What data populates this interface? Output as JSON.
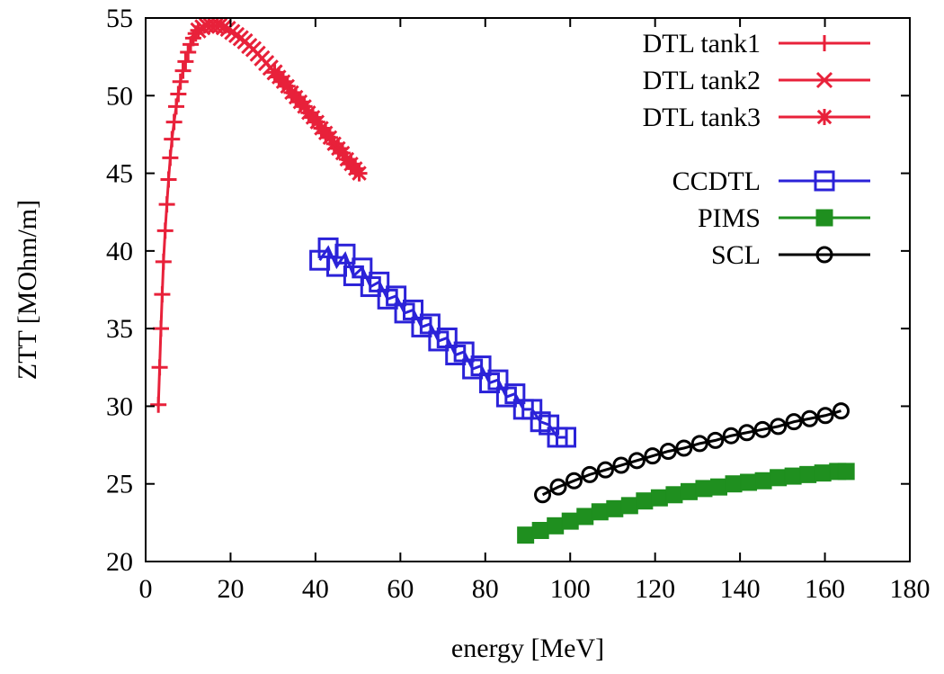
{
  "chart_data": {
    "type": "scatter",
    "title": "",
    "xlabel": "energy [MeV]",
    "ylabel": "ZTT [MOhm/m]",
    "xlim": [
      0,
      180
    ],
    "ylim": [
      20,
      55
    ],
    "xticks": [
      0,
      20,
      40,
      60,
      80,
      100,
      120,
      140,
      160,
      180
    ],
    "yticks": [
      20,
      25,
      30,
      35,
      40,
      45,
      50,
      55
    ],
    "grid": false,
    "legend_position": "top-right",
    "series": [
      {
        "name": "DTL tank1",
        "color": "#e8213a",
        "marker": "plus",
        "x": [
          3.0,
          3.3,
          3.6,
          3.9,
          4.2,
          4.6,
          5.0,
          5.4,
          5.8,
          6.2,
          6.7,
          7.2,
          7.7,
          8.2,
          8.8,
          9.4,
          10.0,
          10.6,
          11.2,
          11.8,
          12.4
        ],
        "y": [
          30.1,
          32.5,
          35.0,
          37.2,
          39.3,
          41.3,
          43.0,
          44.6,
          46.0,
          47.2,
          48.3,
          49.3,
          50.1,
          50.9,
          51.6,
          52.2,
          52.8,
          53.3,
          53.7,
          54.0,
          54.2
        ]
      },
      {
        "name": "DTL tank2",
        "color": "#e8213a",
        "marker": "cross",
        "x": [
          12.4,
          13.4,
          14.4,
          15.4,
          16.4,
          17.4,
          18.4,
          19.4,
          20.4,
          21.4,
          22.4,
          23.4,
          24.4,
          25.4,
          26.4,
          27.4,
          28.4,
          29.4,
          30.4
        ],
        "y": [
          54.2,
          54.4,
          54.5,
          54.5,
          54.5,
          54.5,
          54.4,
          54.3,
          54.1,
          53.9,
          53.7,
          53.5,
          53.2,
          53.0,
          52.7,
          52.4,
          52.1,
          51.8,
          51.5
        ]
      },
      {
        "name": "DTL tank3",
        "color": "#e8213a",
        "marker": "star",
        "x": [
          30.4,
          31.4,
          32.4,
          33.4,
          34.4,
          35.4,
          36.4,
          37.4,
          38.4,
          39.4,
          40.4,
          41.4,
          42.4,
          43.4,
          44.4,
          45.4,
          46.4,
          47.4,
          48.4,
          49.4,
          50.3
        ],
        "y": [
          51.5,
          51.2,
          50.9,
          50.6,
          50.2,
          49.9,
          49.6,
          49.3,
          48.9,
          48.6,
          48.3,
          47.9,
          47.6,
          47.3,
          46.9,
          46.6,
          46.3,
          45.9,
          45.6,
          45.3,
          45.0
        ]
      },
      {
        "name": "CCDTL",
        "color": "#2b22d8",
        "marker": "open-square",
        "x": [
          41,
          43,
          45,
          47,
          49,
          51,
          53,
          55,
          57,
          59,
          61,
          63,
          65,
          67,
          69,
          71,
          73,
          75,
          77,
          79,
          81,
          83,
          85,
          87,
          89,
          91,
          93,
          95,
          97,
          99
        ],
        "y": [
          39.4,
          40.2,
          39.0,
          39.8,
          38.4,
          38.9,
          37.7,
          38.0,
          36.9,
          37.1,
          36.0,
          36.2,
          35.1,
          35.3,
          34.2,
          34.4,
          33.3,
          33.5,
          32.4,
          32.6,
          31.5,
          31.7,
          30.6,
          30.8,
          29.8,
          29.8,
          29.0,
          28.8,
          28.0,
          28.0
        ]
      },
      {
        "name": "PIMS",
        "color": "#1f8f1f",
        "marker": "filled-square",
        "x": [
          89.5,
          93,
          96.5,
          100,
          103.5,
          107,
          110.5,
          114,
          117.5,
          121,
          124.5,
          128,
          131.5,
          135,
          138.5,
          142,
          145.5,
          149,
          152.5,
          156,
          159.5,
          163,
          165
        ],
        "y": [
          21.7,
          22.0,
          22.3,
          22.6,
          22.9,
          23.2,
          23.4,
          23.6,
          23.9,
          24.1,
          24.3,
          24.5,
          24.7,
          24.8,
          25.0,
          25.1,
          25.2,
          25.4,
          25.5,
          25.6,
          25.7,
          25.8,
          25.8
        ]
      },
      {
        "name": "SCL",
        "color": "#000000",
        "marker": "open-circle",
        "x": [
          93.5,
          97.2,
          100.9,
          104.6,
          108.3,
          112.0,
          115.7,
          119.4,
          123.1,
          126.8,
          130.5,
          134.2,
          137.9,
          141.6,
          145.3,
          149.0,
          152.7,
          156.4,
          160.1,
          163.8
        ],
        "y": [
          24.3,
          24.8,
          25.2,
          25.6,
          25.9,
          26.2,
          26.5,
          26.8,
          27.1,
          27.3,
          27.6,
          27.8,
          28.1,
          28.3,
          28.5,
          28.7,
          29.0,
          29.2,
          29.4,
          29.7
        ]
      }
    ]
  }
}
